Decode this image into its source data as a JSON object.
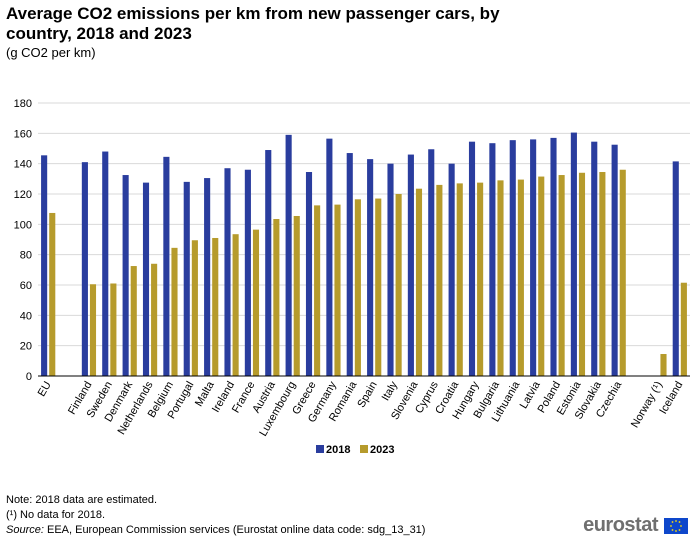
{
  "header": {
    "title": "Average CO2 emissions per km from new passenger cars, by country, 2018 and 2023",
    "subtitle": "(g CO2 per km)"
  },
  "colors": {
    "s2018": "#2a3d9e",
    "s2023": "#b69b2c",
    "grid": "#d9d9d9",
    "axis": "#000000"
  },
  "chart_data": {
    "type": "bar",
    "title": "Average CO2 emissions per km from new passenger cars, by country, 2018 and 2023",
    "ylabel": "g CO2 per km",
    "xlabel": "",
    "ylim": [
      0,
      180
    ],
    "yticks": [
      0,
      20,
      40,
      60,
      80,
      100,
      120,
      140,
      160,
      180
    ],
    "grid": true,
    "legend": "bottom-center",
    "groups": [
      [
        "EU"
      ],
      [
        "Finland",
        "Sweden",
        "Denmark",
        "Netherlands",
        "Belgium",
        "Portugal",
        "Malta",
        "Ireland",
        "France",
        "Austria",
        "Luxembourg",
        "Greece",
        "Germany",
        "Romania",
        "Spain",
        "Italy",
        "Slovenia",
        "Cyprus",
        "Croatia",
        "Hungary",
        "Bulgaria",
        "Lithuania",
        "Latvia",
        "Poland",
        "Estonia",
        "Slovakia",
        "Czechia"
      ],
      [
        "Norway (¹)",
        "Iceland"
      ]
    ],
    "categories": [
      "EU",
      "Finland",
      "Sweden",
      "Denmark",
      "Netherlands",
      "Belgium",
      "Portugal",
      "Malta",
      "Ireland",
      "France",
      "Austria",
      "Luxembourg",
      "Greece",
      "Germany",
      "Romania",
      "Spain",
      "Italy",
      "Slovenia",
      "Cyprus",
      "Croatia",
      "Hungary",
      "Bulgaria",
      "Lithuania",
      "Latvia",
      "Poland",
      "Estonia",
      "Slovakia",
      "Czechia",
      "Norway (¹)",
      "Iceland"
    ],
    "series": [
      {
        "name": "2018",
        "values": [
          145.5,
          141,
          148,
          132.5,
          127.5,
          144.5,
          128,
          130.5,
          137,
          136,
          149,
          159,
          134.5,
          156.5,
          147,
          143,
          140,
          146,
          149.5,
          140,
          154.5,
          153.5,
          155.5,
          156,
          157,
          160.5,
          154.5,
          152.5,
          null,
          141.5
        ]
      },
      {
        "name": "2023",
        "values": [
          107.5,
          60.5,
          61,
          72.5,
          74,
          84.5,
          89.5,
          91,
          93.5,
          96.5,
          103.5,
          105.5,
          112.5,
          113,
          116.5,
          117,
          120,
          123.5,
          126,
          127,
          127.5,
          129,
          129.5,
          131.5,
          132.5,
          134,
          134.5,
          136,
          14.5,
          61.5
        ]
      }
    ]
  },
  "notes": {
    "note1": "Note: 2018 data are estimated.",
    "note2": "(¹) No data for 2018.",
    "source_label": "Source:",
    "source_text": " EEA, European Commission services (Eurostat online data code: sdg_13_31)"
  },
  "logo": {
    "text": "eurostat"
  }
}
